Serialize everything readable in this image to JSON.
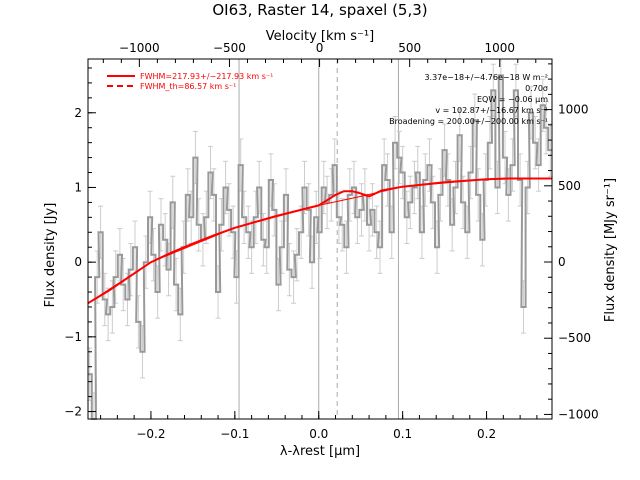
{
  "chart_data": {
    "type": "line",
    "title": "OI63, Raster 14, spaxel (5,3)",
    "xlabel": "λ-λrest [μm]",
    "ylabel": "Flux density [Jy]",
    "top_xlabel": "Velocity [km s⁻¹]",
    "right_ylabel": "Flux density [MJy sr⁻¹]",
    "xlim": [
      -0.275,
      0.278
    ],
    "ylim": [
      -2.1,
      2.72
    ],
    "top_xlim": [
      -1285,
      1290
    ],
    "right_ylim": [
      -1030,
      1332
    ],
    "x_ticks": [
      -0.2,
      -0.1,
      0.0,
      0.1,
      0.2
    ],
    "x_tick_labels": [
      "−0.2",
      "−0.1",
      "0.0",
      "0.1",
      "0.2"
    ],
    "y_ticks": [
      -2,
      -1,
      0,
      1,
      2
    ],
    "y_tick_labels": [
      "−2",
      "−1",
      "0",
      "1",
      "2"
    ],
    "top_ticks": [
      -1000,
      -500,
      0,
      500,
      1000
    ],
    "top_tick_labels": [
      "−1000",
      "−500",
      "0",
      "500",
      "1000"
    ],
    "right_ticks": [
      -1000,
      -500,
      0,
      500,
      1000
    ],
    "right_tick_labels": [
      "−1000",
      "−500",
      "0",
      "500",
      "1000"
    ],
    "legend_placement": "top-left",
    "legend": [
      {
        "label": "FWHM=217.93+/−217.93 km s⁻¹",
        "style": "solid",
        "color": "#ff0000"
      },
      {
        "label": "FWHM_th=86.57 km s⁻¹",
        "style": "dashed",
        "color": "#ff0000"
      }
    ],
    "annotations": [
      "3.37e−18+/−4.76e−18 W m⁻²",
      "0.70σ",
      "EQW = −0.06 μm",
      "v = 102.87+/−16.67 km s⁻¹",
      "Broadening = 200.00+/−200.00 km s⁻¹"
    ],
    "vertical_lines": [
      {
        "x": -0.095,
        "style": "solid",
        "color": "#aaaaaa"
      },
      {
        "x": 0.0,
        "style": "solid",
        "color": "#aaaaaa"
      },
      {
        "x": 0.095,
        "style": "solid",
        "color": "#aaaaaa"
      },
      {
        "x": 0.022,
        "style": "dashed",
        "color": "#aaaaaa"
      }
    ],
    "series": [
      {
        "name": "data",
        "color": "#999999",
        "style": "step-with-errorbars",
        "x": [
          -0.273,
          -0.268,
          -0.264,
          -0.26,
          -0.255,
          -0.251,
          -0.246,
          -0.242,
          -0.237,
          -0.233,
          -0.228,
          -0.224,
          -0.219,
          -0.215,
          -0.21,
          -0.206,
          -0.201,
          -0.197,
          -0.192,
          -0.188,
          -0.183,
          -0.179,
          -0.174,
          -0.17,
          -0.165,
          -0.161,
          -0.156,
          -0.152,
          -0.147,
          -0.143,
          -0.138,
          -0.134,
          -0.129,
          -0.125,
          -0.12,
          -0.116,
          -0.111,
          -0.107,
          -0.102,
          -0.098,
          -0.093,
          -0.089,
          -0.084,
          -0.08,
          -0.075,
          -0.071,
          -0.066,
          -0.062,
          -0.057,
          -0.053,
          -0.048,
          -0.044,
          -0.039,
          -0.035,
          -0.03,
          -0.026,
          -0.021,
          -0.017,
          -0.012,
          -0.008,
          -0.003,
          0.001,
          0.006,
          0.01,
          0.015,
          0.019,
          0.024,
          0.028,
          0.033,
          0.037,
          0.042,
          0.046,
          0.051,
          0.055,
          0.06,
          0.064,
          0.069,
          0.073,
          0.078,
          0.082,
          0.087,
          0.091,
          0.096,
          0.1,
          0.105,
          0.109,
          0.114,
          0.118,
          0.123,
          0.127,
          0.132,
          0.136,
          0.141,
          0.145,
          0.15,
          0.154,
          0.159,
          0.163,
          0.168,
          0.172,
          0.177,
          0.181,
          0.186,
          0.19,
          0.195,
          0.199,
          0.204,
          0.208,
          0.213,
          0.217,
          0.222,
          0.226,
          0.231,
          0.235,
          0.24,
          0.244,
          0.249,
          0.253,
          0.258,
          0.262,
          0.267,
          0.271,
          0.276
        ],
        "y": [
          -1.5,
          -2.1,
          -0.2,
          0.4,
          -0.5,
          -0.7,
          -0.6,
          -0.2,
          0.1,
          -0.3,
          -0.5,
          -0.1,
          0.2,
          -0.8,
          -1.2,
          0.0,
          0.6,
          0.1,
          -0.4,
          0.5,
          0.3,
          -0.1,
          0.8,
          -0.3,
          -0.7,
          0.2,
          0.9,
          0.6,
          1.4,
          0.5,
          0.3,
          0.6,
          1.2,
          0.9,
          -0.4,
          0.5,
          1.0,
          0.7,
          0.4,
          -0.2,
          1.3,
          0.6,
          0.4,
          0.2,
          0.6,
          1.0,
          0.3,
          0.2,
          1.1,
          0.7,
          -0.3,
          0.2,
          0.9,
          -0.1,
          -0.2,
          0.1,
          0.4,
          1.0,
          0.7,
          0.0,
          0.6,
          0.4,
          1.0,
          0.8,
          0.9,
          1.3,
          0.6,
          0.5,
          0.2,
          0.9,
          1.0,
          0.6,
          0.7,
          0.9,
          0.5,
          0.7,
          0.4,
          0.2,
          1.3,
          1.1,
          0.4,
          1.6,
          1.4,
          1.2,
          0.6,
          0.8,
          1.0,
          1.2,
          0.4,
          1.1,
          1.3,
          0.8,
          0.2,
          0.9,
          1.5,
          1.1,
          0.5,
          1.0,
          1.7,
          0.8,
          0.4,
          1.2,
          1.9,
          0.9,
          0.3,
          1.1,
          1.6,
          2.3,
          1.0,
          2.5,
          1.4,
          0.9,
          1.3,
          2.3,
          1.1,
          -0.6,
          1.0,
          2.0,
          1.6,
          1.3,
          2.1,
          1.8,
          1.5
        ],
        "yerr": 0.35
      },
      {
        "name": "model",
        "color": "#ff0000",
        "style": "solid",
        "x": [
          -0.275,
          -0.25,
          -0.225,
          -0.2,
          -0.175,
          -0.15,
          -0.125,
          -0.1,
          -0.075,
          -0.05,
          -0.025,
          0.0,
          0.01,
          0.02,
          0.03,
          0.04,
          0.05,
          0.06,
          0.075,
          0.1,
          0.125,
          0.15,
          0.175,
          0.2,
          0.225,
          0.25,
          0.278
        ],
        "y": [
          -0.55,
          -0.38,
          -0.19,
          0.0,
          0.13,
          0.25,
          0.36,
          0.46,
          0.54,
          0.62,
          0.69,
          0.76,
          0.83,
          0.9,
          0.95,
          0.95,
          0.92,
          0.88,
          0.96,
          1.01,
          1.04,
          1.07,
          1.09,
          1.11,
          1.12,
          1.12,
          1.12
        ]
      },
      {
        "name": "continuum",
        "color": "#ff0000",
        "style": "thin",
        "x": [
          -0.275,
          -0.2,
          -0.1,
          0.0,
          0.05,
          0.1,
          0.2,
          0.278
        ],
        "y": [
          -0.55,
          0.0,
          0.46,
          0.76,
          0.88,
          1.01,
          1.11,
          1.12
        ]
      }
    ]
  }
}
